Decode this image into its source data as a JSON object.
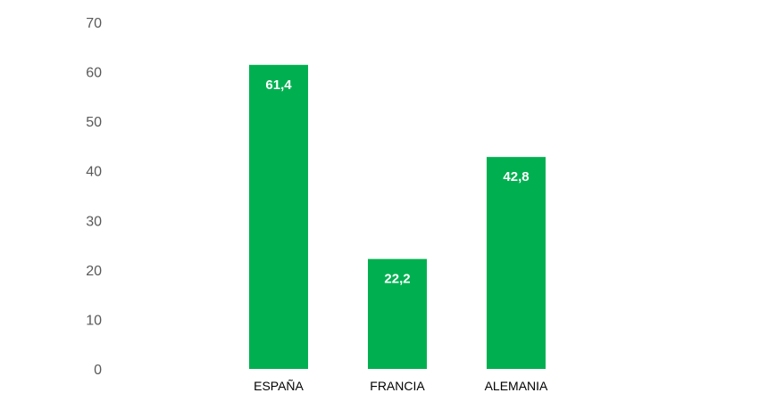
{
  "chart_data": {
    "type": "bar",
    "title": "",
    "xlabel": "",
    "ylabel": "",
    "categories": [
      "ESPAÑA",
      "FRANCIA",
      "ALEMANIA"
    ],
    "values": [
      61.4,
      22.2,
      42.8
    ],
    "value_labels": [
      "61,4",
      "22,2",
      "42,8"
    ],
    "y_ticks": [
      0,
      10,
      20,
      30,
      40,
      50,
      60,
      70
    ],
    "ylim": [
      0,
      70
    ],
    "grid": false,
    "legend": "none",
    "colors": {
      "bar": "#00b050",
      "tick_text": "#595959",
      "category_text": "#000000",
      "data_label_text": "#ffffff"
    }
  }
}
